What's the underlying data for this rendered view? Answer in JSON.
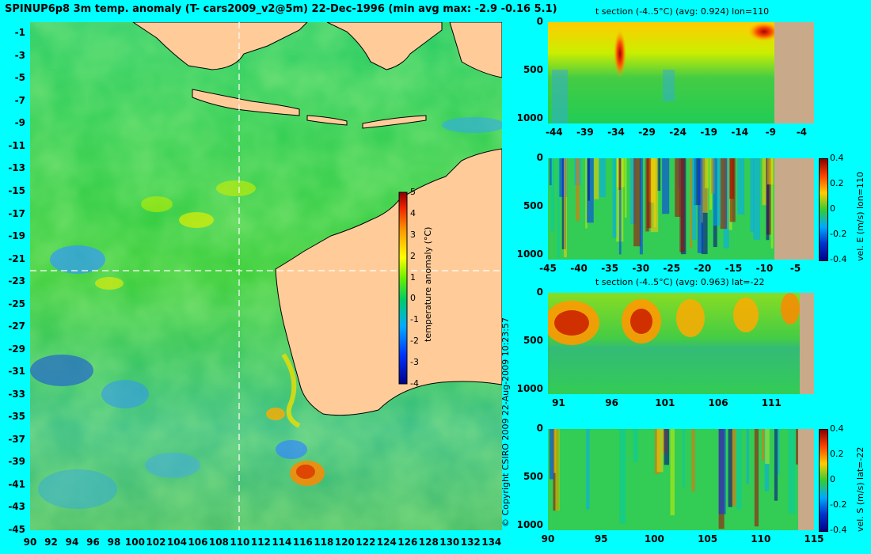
{
  "title": "SPINUP6p8 3m temp. anomaly (T- cars2009_v2@5m) 22-Dec-1996 (min avg max: -2.9 -0.16 5.1)",
  "copyright": "© Copyright CSIRO 2009   22-Aug-2009 10:23:57",
  "colors": {
    "background": "#00ffff",
    "land": "#ffcc99",
    "land_section": "#c8aa8a"
  },
  "chart_data": [
    {
      "type": "heatmap",
      "subtype": "map",
      "title": "SPINUP6p8 3m temp. anomaly (T- cars2009_v2@5m) 22-Dec-1996 (min avg max: -2.9 -0.16 5.1)",
      "x_ticks": [
        "90",
        "92",
        "94",
        "96",
        "98",
        "100",
        "102",
        "104",
        "106",
        "108",
        "110",
        "112",
        "114",
        "116",
        "118",
        "120",
        "122",
        "124",
        "126",
        "128",
        "130",
        "132",
        "134"
      ],
      "y_ticks": [
        "-1",
        "-3",
        "-5",
        "-7",
        "-9",
        "-11",
        "-13",
        "-15",
        "-17",
        "-19",
        "-21",
        "-23",
        "-25",
        "-27",
        "-29",
        "-31",
        "-33",
        "-35",
        "-37",
        "-39",
        "-41",
        "-43",
        "-45"
      ],
      "xlim": [
        90,
        135
      ],
      "ylim": [
        -45,
        0
      ],
      "section_lines": {
        "lon": 110,
        "lat": -22
      },
      "colorbar": {
        "label": "temperature anomaly (°C)",
        "ticks": [
          "5",
          "4",
          "3",
          "2",
          "1",
          "0",
          "-1",
          "-2",
          "-3",
          "-4"
        ],
        "range": [
          -4,
          5
        ]
      },
      "stats": {
        "min": -2.9,
        "avg": -0.16,
        "max": 5.1
      }
    },
    {
      "type": "heatmap",
      "title": "t section (-4..5°C) (avg: 0.924) lon=110",
      "x_ticks": [
        "-44",
        "-39",
        "-34",
        "-29",
        "-24",
        "-19",
        "-14",
        "-9",
        "-4"
      ],
      "y_ticks": [
        "0",
        "500",
        "1000"
      ],
      "xlim": [
        -45,
        -2
      ],
      "ylim": [
        1050,
        0
      ],
      "land_from_x": -8,
      "hotspots": [
        {
          "x": -33.5,
          "depth": 200,
          "value": 4.5
        },
        {
          "x": -9,
          "depth": 20,
          "value": 5
        }
      ]
    },
    {
      "type": "heatmap",
      "title": "",
      "x_ticks": [
        "-45",
        "-40",
        "-35",
        "-30",
        "-25",
        "-20",
        "-15",
        "-10",
        "-5"
      ],
      "y_ticks": [
        "0",
        "500",
        "1000"
      ],
      "xlim": [
        -45,
        -2
      ],
      "ylim": [
        1050,
        0
      ],
      "land_from_x": -8,
      "colorbar": {
        "label": "vel. E (m/s) lon=110",
        "ticks": [
          "0.4",
          "0.2",
          "0",
          "-0.2",
          "-0.4"
        ],
        "range": [
          -0.4,
          0.4
        ]
      }
    },
    {
      "type": "heatmap",
      "title": "t section (-4..5°C) (avg: 0.963) lat=-22",
      "x_ticks": [
        "91",
        "96",
        "101",
        "106",
        "111"
      ],
      "y_ticks": [
        "0",
        "500",
        "1000"
      ],
      "xlim": [
        90,
        115
      ],
      "ylim": [
        1050,
        0
      ],
      "land_from_x": 113.8,
      "hotspots": [
        {
          "x": 92.5,
          "depth": 300,
          "value": 5
        },
        {
          "x": 98.5,
          "depth": 280,
          "value": 5
        },
        {
          "x": 103.5,
          "depth": 250,
          "value": 3
        },
        {
          "x": 108.5,
          "depth": 230,
          "value": 3
        },
        {
          "x": 112.5,
          "depth": 150,
          "value": 3
        }
      ]
    },
    {
      "type": "heatmap",
      "title": "",
      "x_ticks": [
        "90",
        "95",
        "100",
        "105",
        "110",
        "115"
      ],
      "y_ticks": [
        "0",
        "500",
        "1000"
      ],
      "xlim": [
        90,
        115
      ],
      "ylim": [
        1050,
        0
      ],
      "land_from_x": 113.6,
      "colorbar": {
        "label": "vel. S (m/s) lat=-22",
        "ticks": [
          "0.4",
          "0.2",
          "0",
          "-0.2",
          "-0.4"
        ],
        "range": [
          -0.4,
          0.4
        ]
      }
    }
  ]
}
